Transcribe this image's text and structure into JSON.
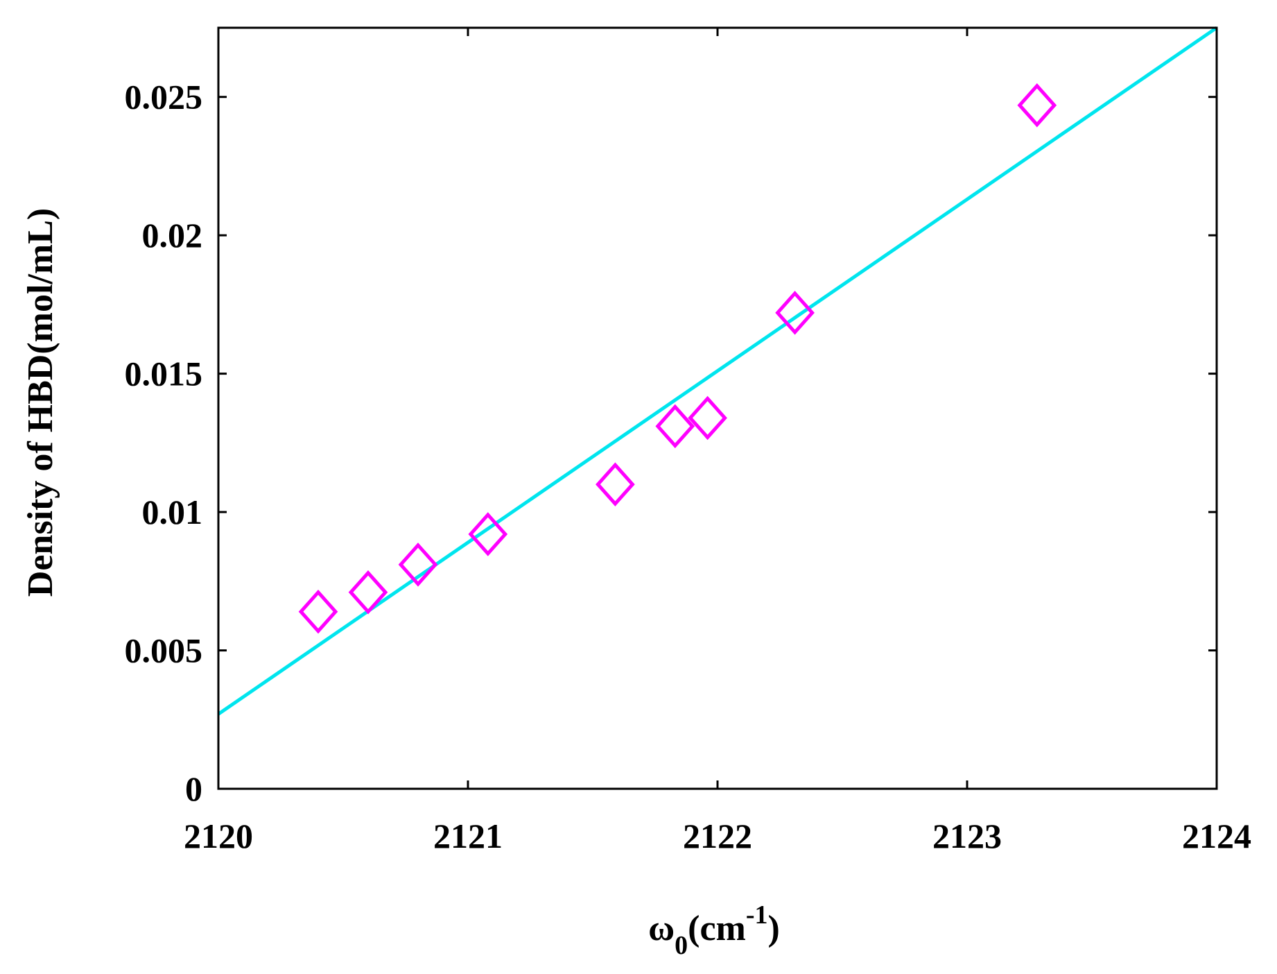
{
  "colors": {
    "background": "#ffffff",
    "axes": "#000000",
    "marker": "#ff00ff",
    "fit_line": "#00e5ee"
  },
  "chart_data": {
    "type": "scatter",
    "title": "",
    "xlabel": {
      "main": "ω",
      "subscript": "0",
      "unit_open": "(cm",
      "superscript": "-1",
      "unit_close": ")"
    },
    "ylabel": "Density of HBD(mol/mL)",
    "xlim": [
      2120,
      2124
    ],
    "ylim": [
      0,
      0.0275
    ],
    "x_ticks": [
      2120,
      2121,
      2122,
      2123,
      2124
    ],
    "x_tick_labels": [
      "2120",
      "2121",
      "2122",
      "2123",
      "2124"
    ],
    "y_ticks": [
      0,
      0.005,
      0.01,
      0.015,
      0.02,
      0.025
    ],
    "y_tick_labels": [
      "0",
      "0.005",
      "0.01",
      "0.015",
      "0.02",
      "0.025"
    ],
    "grid": false,
    "marker": "diamond-open",
    "points": [
      {
        "x": 2120.4,
        "y": 0.0064
      },
      {
        "x": 2120.6,
        "y": 0.0071
      },
      {
        "x": 2120.8,
        "y": 0.0081
      },
      {
        "x": 2121.08,
        "y": 0.0092
      },
      {
        "x": 2121.59,
        "y": 0.011
      },
      {
        "x": 2121.83,
        "y": 0.0131
      },
      {
        "x": 2121.96,
        "y": 0.0134
      },
      {
        "x": 2122.31,
        "y": 0.0172
      },
      {
        "x": 2123.28,
        "y": 0.0247
      }
    ],
    "fit_line": {
      "x": [
        2120,
        2124
      ],
      "y": [
        0.0027,
        0.0275
      ]
    }
  }
}
